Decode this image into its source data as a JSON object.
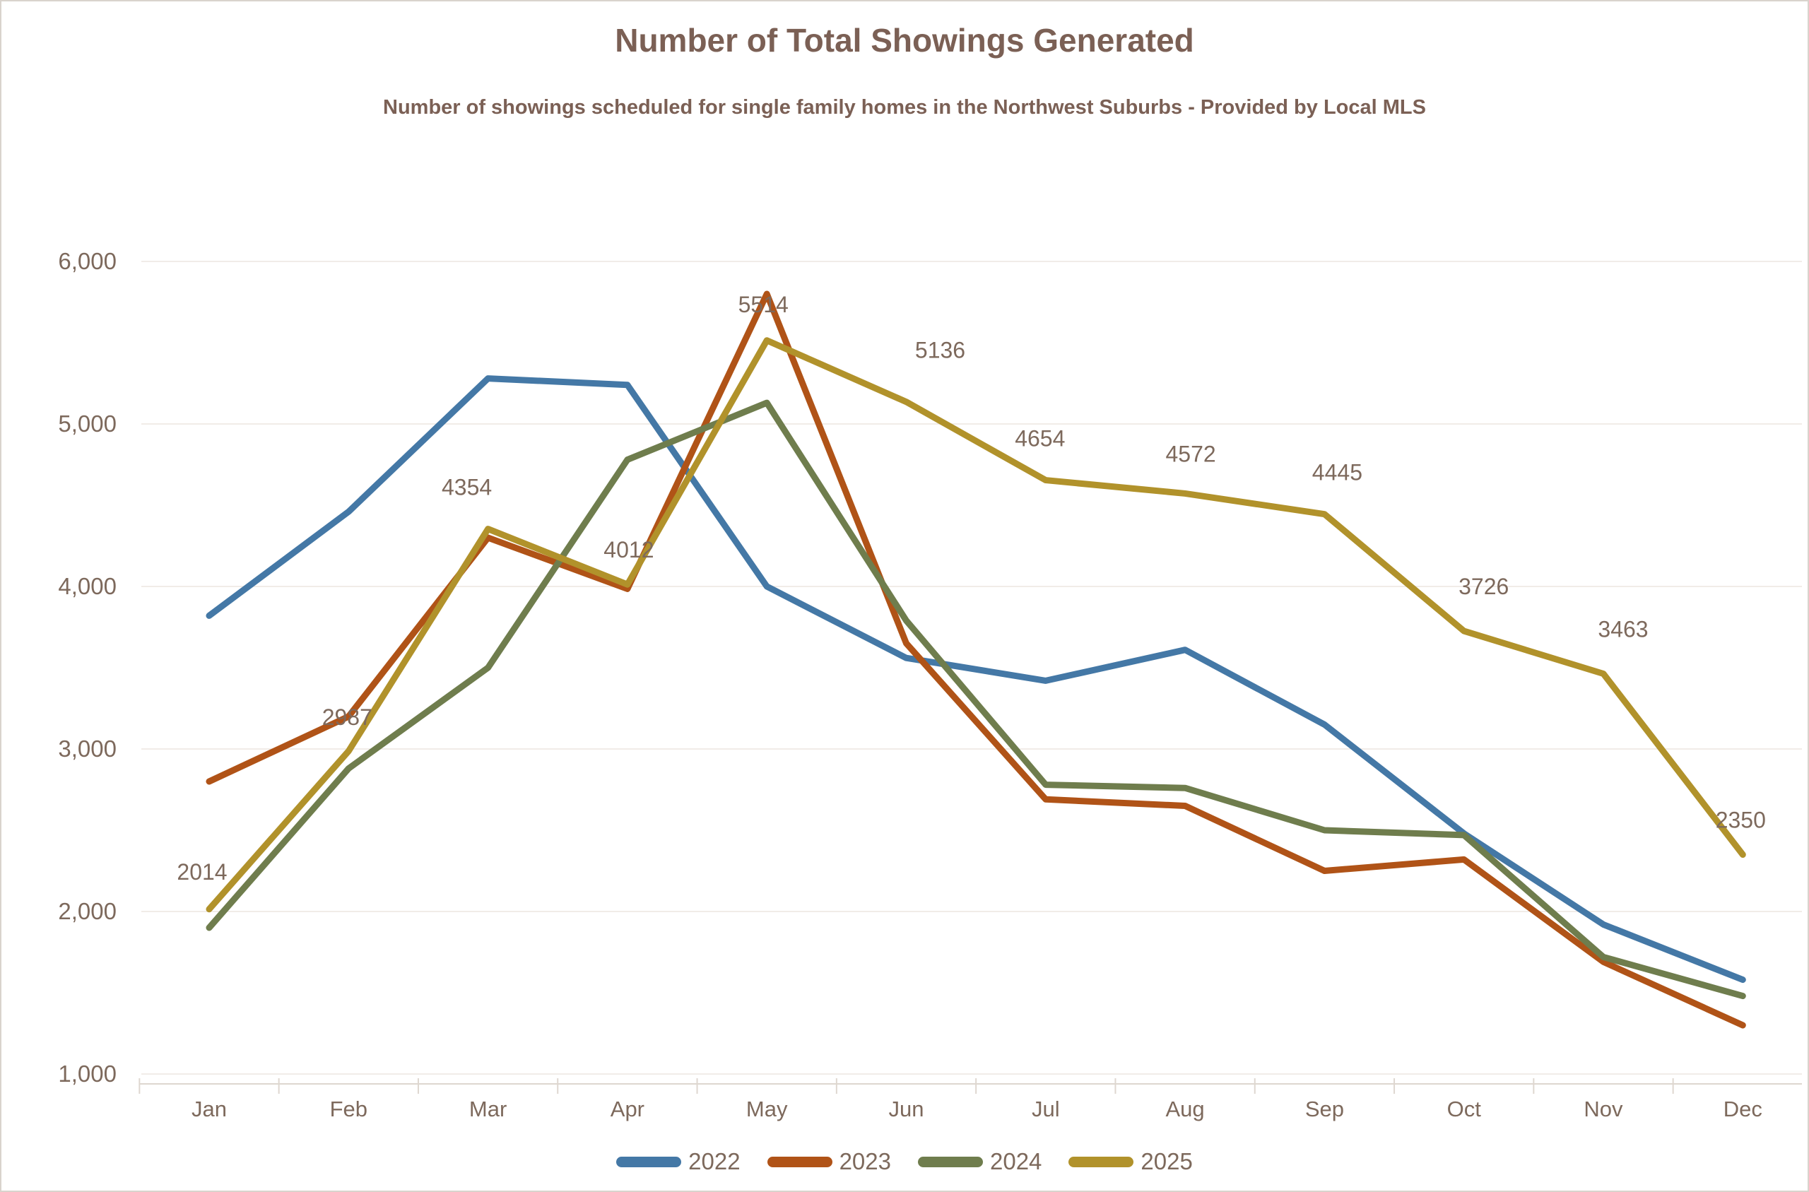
{
  "header": {
    "title": "Number of Total Showings Generated",
    "subtitle": "Number of showings scheduled for single family homes  in the Northwest Suburbs - Provided by Local MLS"
  },
  "colors": {
    "title_text": "#7b6055",
    "axis_text": "#7d695c",
    "data_label_text": "#7d695c",
    "gridline": "#f1ece8",
    "axis_line": "#ded7d0",
    "tick": "#ded7d0",
    "series_2022": "#4478a6",
    "series_2023": "#b05317",
    "series_2024": "#6f7d4d",
    "series_2025": "#b1922b"
  },
  "chart_data": {
    "type": "line",
    "title": "Number of Total Showings Generated",
    "subtitle": "Number of showings scheduled for single family homes  in the Northwest Suburbs - Provided by Local MLS",
    "categories": [
      "Jan",
      "Feb",
      "Mar",
      "Apr",
      "May",
      "Jun",
      "Jul",
      "Aug",
      "Sep",
      "Oct",
      "Nov",
      "Dec"
    ],
    "xlabel": "",
    "ylabel": "",
    "ylim": [
      1000,
      6000
    ],
    "grid": true,
    "legend_position": "bottom",
    "y_axis": {
      "tick_values": [
        1000,
        2000,
        3000,
        4000,
        5000,
        6000
      ],
      "tick_labels": [
        "1,000",
        "2,000",
        "3,000",
        "4,000",
        "5,000",
        "6,000"
      ]
    },
    "series": [
      {
        "name": "2022",
        "color": "#4478a6",
        "values": [
          3820,
          4460,
          5280,
          5240,
          4000,
          3560,
          3420,
          3610,
          3150,
          2480,
          1920,
          1580
        ]
      },
      {
        "name": "2023",
        "color": "#b05317",
        "values": [
          2800,
          3200,
          4300,
          3985,
          5800,
          3650,
          2690,
          2650,
          2250,
          2320,
          1690,
          1300
        ]
      },
      {
        "name": "2024",
        "color": "#6f7d4d",
        "values": [
          1900,
          2880,
          3500,
          4780,
          5130,
          3790,
          2780,
          2760,
          2500,
          2470,
          1720,
          1480
        ]
      },
      {
        "name": "2025",
        "color": "#b1922b",
        "values": [
          2014,
          2987,
          4354,
          4012,
          5514,
          5136,
          4654,
          4572,
          4445,
          3726,
          3463,
          2350
        ],
        "point_labels": [
          {
            "text": "2014",
            "dx": -10,
            "dy": -42
          },
          {
            "text": "2987",
            "dx": -2,
            "dy": -37
          },
          {
            "text": "4354",
            "dx": -30,
            "dy": -48
          },
          {
            "text": "4012",
            "dx": 2,
            "dy": -38
          },
          {
            "text": "5514",
            "dx": -5,
            "dy": -40
          },
          {
            "text": "5136",
            "dx": 48,
            "dy": -62
          },
          {
            "text": "4654",
            "dx": -8,
            "dy": -48
          },
          {
            "text": "4572",
            "dx": 8,
            "dy": -45
          },
          {
            "text": "4445",
            "dx": 18,
            "dy": -48
          },
          {
            "text": "3726",
            "dx": 28,
            "dy": -52
          },
          {
            "text": "3463",
            "dx": 28,
            "dy": -52
          },
          {
            "text": "2350",
            "dx": -3,
            "dy": -38
          }
        ]
      }
    ]
  }
}
